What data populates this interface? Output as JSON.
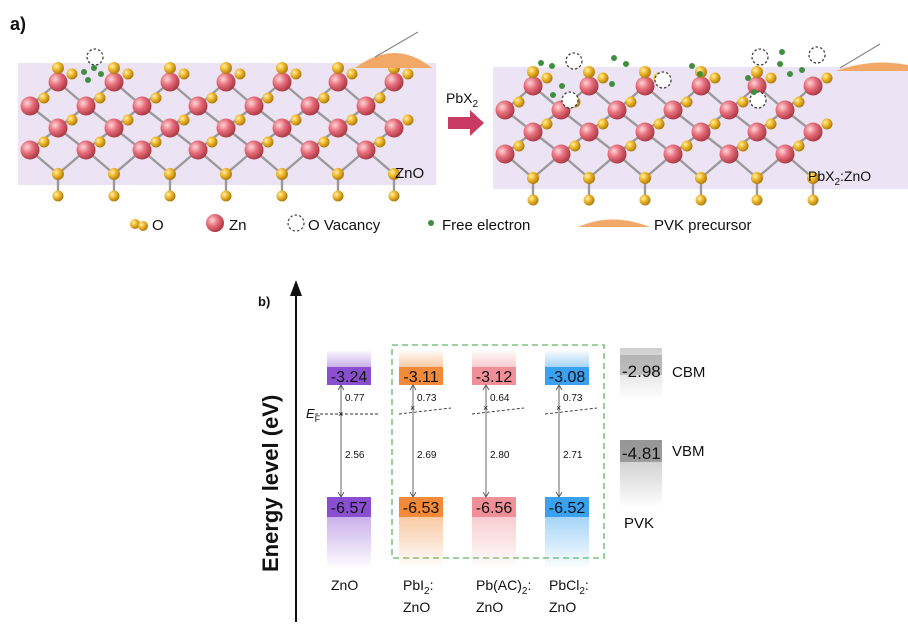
{
  "panel_a": {
    "label": "a)",
    "left_slab_label": "ZnO",
    "arrow_label": "PbX",
    "arrow_label_sub": "2",
    "right_slab_label_pre": "PbX",
    "right_slab_label_sub": "2",
    "right_slab_label_post": ":ZnO",
    "legend": {
      "o": "O",
      "zn": "Zn",
      "vacancy": "O Vacancy",
      "electron": "Free electron",
      "pvk": "PVK precursor"
    },
    "colors": {
      "slab": "#ece4f4",
      "o_atom": "#e0a81c",
      "zn_atom": "#e06070",
      "bond": "#9a9a9a",
      "electron": "#3f8f3f",
      "pvk": "#f2a866",
      "arrow": "#c83a62"
    }
  },
  "panel_b": {
    "label": "b)",
    "y_axis_label": "Energy level (eV)",
    "fermi_label": "E",
    "fermi_sub": "F",
    "columns": [
      {
        "cbm": "-3.24",
        "vbm": "-6.57",
        "ef_gap": "0.77",
        "vb_gap": "2.56",
        "name1": "ZnO",
        "name1_sub": "",
        "name1_post": "",
        "name2": "",
        "color": "#8a4fd0"
      },
      {
        "cbm": "-3.11",
        "vbm": "-6.53",
        "ef_gap": "0.73",
        "vb_gap": "2.69",
        "name1": "PbI",
        "name1_sub": "2",
        "name1_post": ":",
        "name2": "ZnO",
        "color": "#f28a3a"
      },
      {
        "cbm": "-3.12",
        "vbm": "-6.56",
        "ef_gap": "0.64",
        "vb_gap": "2.80",
        "name1": "Pb(AC)",
        "name1_sub": "2",
        "name1_post": ":",
        "name2": "ZnO",
        "color": "#f08f97"
      },
      {
        "cbm": "-3.08",
        "vbm": "-6.52",
        "ef_gap": "0.73",
        "vb_gap": "2.71",
        "name1": "PbCl",
        "name1_sub": "2",
        "name1_post": ":",
        "name2": "ZnO",
        "color": "#3aa0f0"
      }
    ],
    "pvk": {
      "cbm": "-2.98",
      "vbm": "-4.81",
      "cbm_label": "CBM",
      "vbm_label": "VBM",
      "name": "PVK",
      "color": "#8a8a8a"
    },
    "dashed_box_color": "#7cc47c"
  }
}
